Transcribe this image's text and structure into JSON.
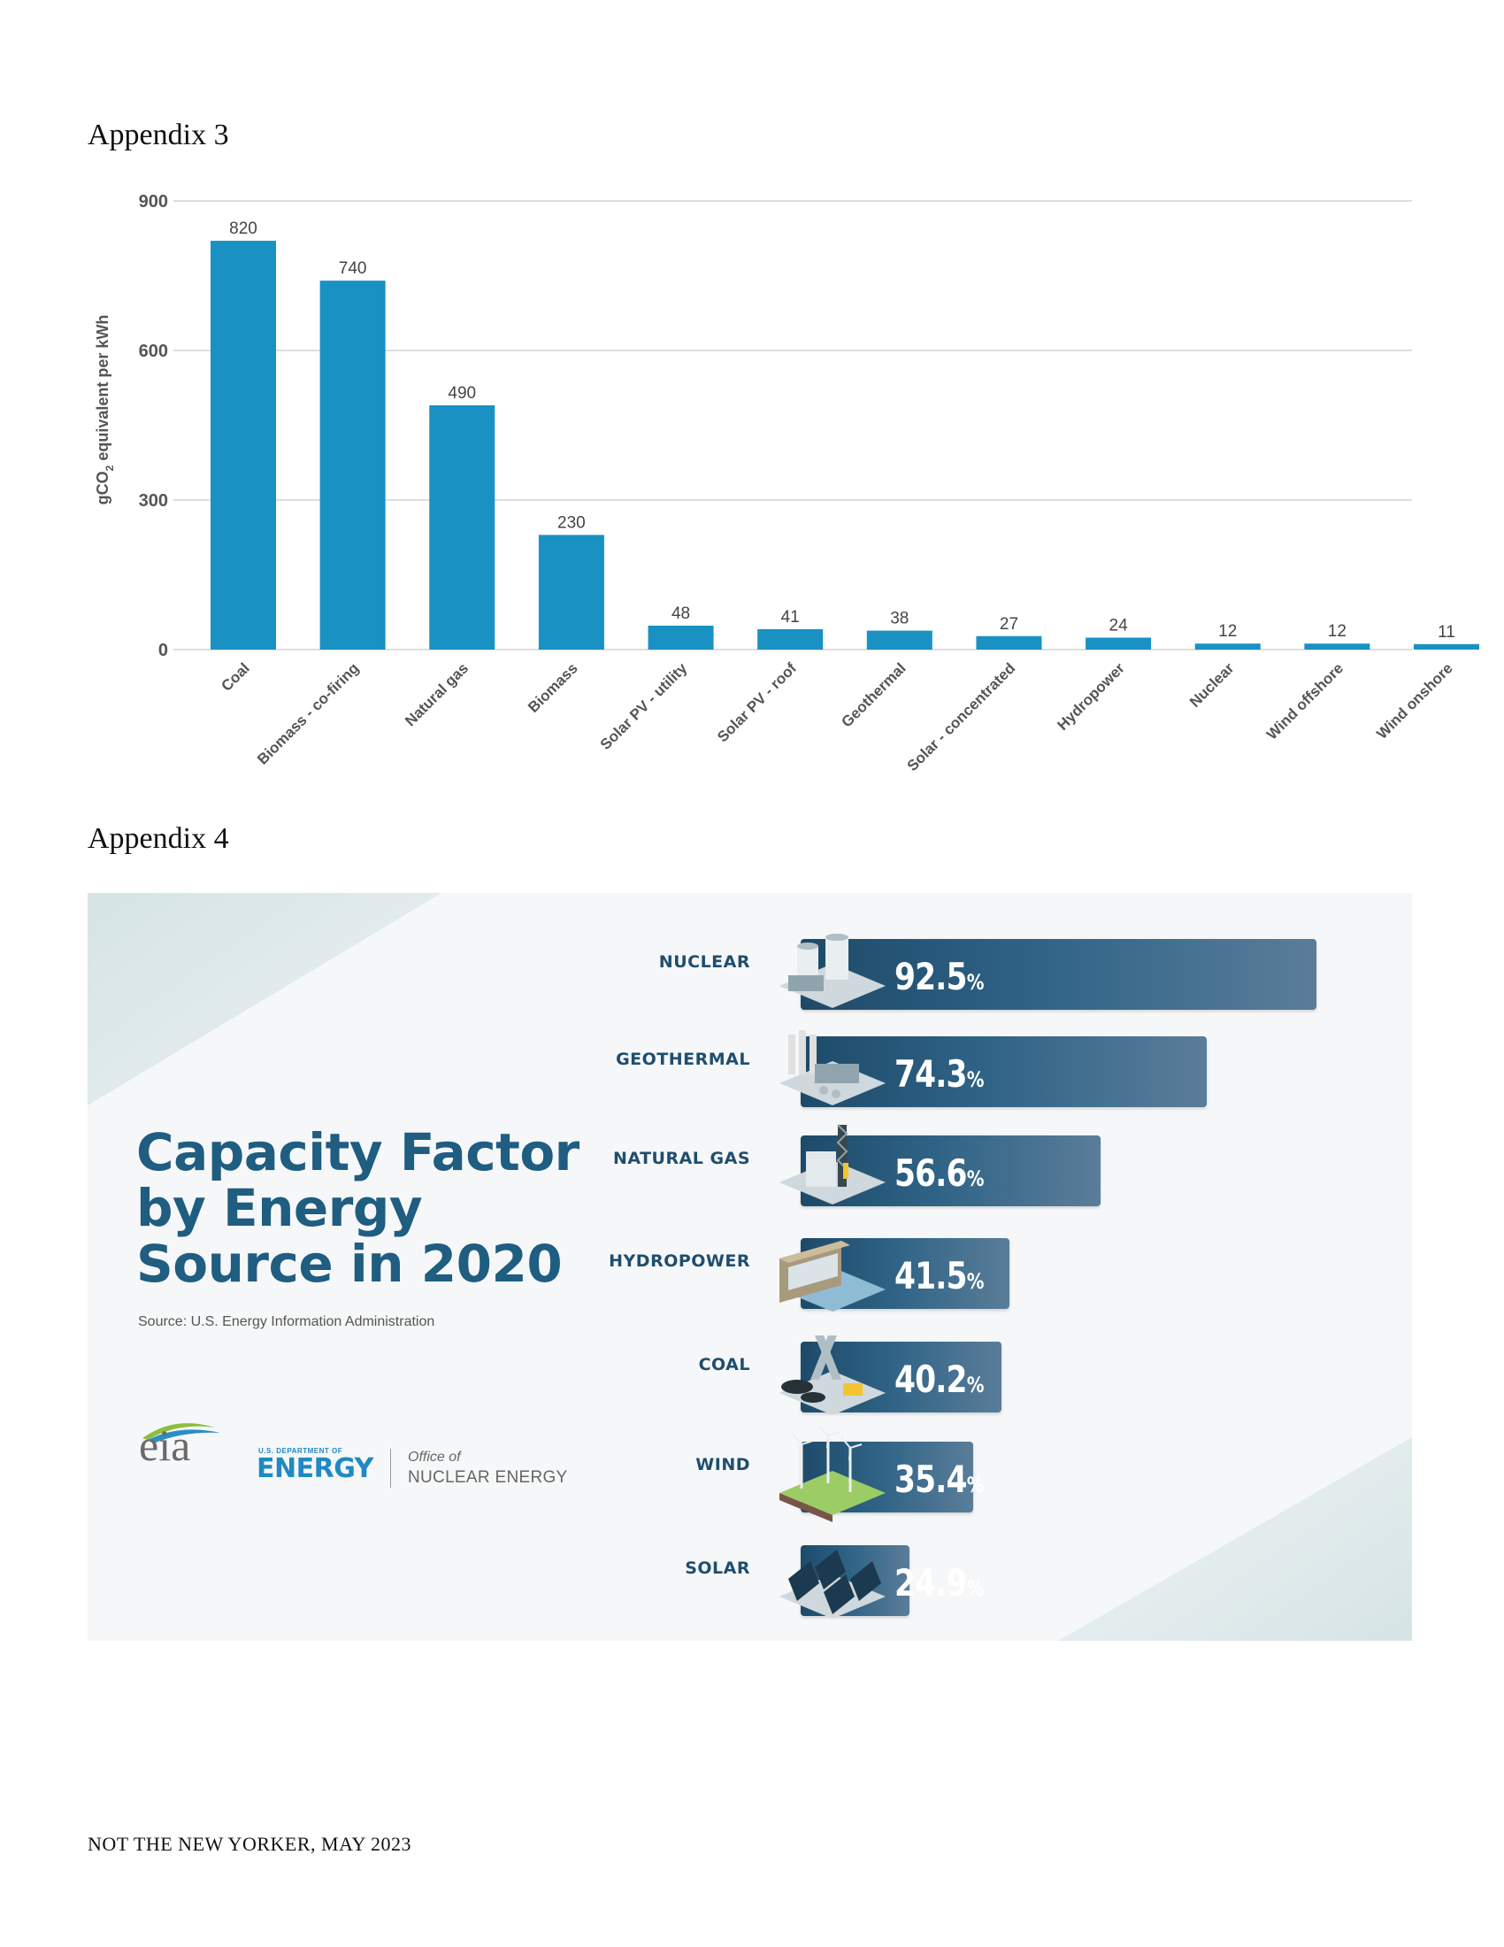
{
  "appendix3": {
    "heading": "Appendix 3"
  },
  "appendix4": {
    "heading": "Appendix 4"
  },
  "chart_data": [
    {
      "type": "bar",
      "categories": [
        "Coal",
        "Biomass - co-firing",
        "Natural gas",
        "Biomass",
        "Solar PV - utility",
        "Solar PV - roof",
        "Geothermal",
        "Solar - concentrated",
        "Hydropower",
        "Nuclear",
        "Wind offshore",
        "Wind onshore"
      ],
      "values": [
        820,
        740,
        490,
        230,
        48,
        41,
        38,
        27,
        24,
        12,
        12,
        11
      ],
      "ylabel": "gCO2 equivalent per kWh",
      "ylabel_parts": {
        "prefix": "gCO",
        "subscript": "2",
        "suffix": " equivalent per kWh"
      },
      "yticks": [
        "0",
        "300",
        "600",
        "900"
      ],
      "ylim": [
        0,
        900
      ],
      "grid": true,
      "bar_color": "#1a91c3"
    },
    {
      "type": "bar",
      "orientation": "horizontal",
      "title_lines": [
        "Capacity Factor",
        "by Energy",
        "Source in 2020"
      ],
      "subtitle": "Source: U.S. Energy Information Administration",
      "categories": [
        "NUCLEAR",
        "GEOTHERMAL",
        "NATURAL GAS",
        "HYDROPOWER",
        "COAL",
        "WIND",
        "SOLAR"
      ],
      "values": [
        92.5,
        74.3,
        56.6,
        41.5,
        40.2,
        35.4,
        24.9
      ],
      "value_labels": [
        "92.5",
        "74.3",
        "56.6",
        "41.5",
        "40.2",
        "35.4",
        "24.9"
      ],
      "unit": "%",
      "icons": [
        "nuclear-plant-icon",
        "geothermal-plant-icon",
        "natural-gas-plant-icon",
        "hydropower-dam-icon",
        "coal-mine-icon",
        "wind-turbine-icon",
        "solar-panel-icon"
      ],
      "bar_color": "#2a5b7c"
    }
  ],
  "logos": {
    "eia": "eia",
    "doe_small": "U.S. DEPARTMENT OF",
    "doe_big": "ENERGY",
    "office_line1": "Office of",
    "office_line2": "NUCLEAR ENERGY"
  },
  "footer": "NOT THE NEW YORKER, MAY 2023"
}
